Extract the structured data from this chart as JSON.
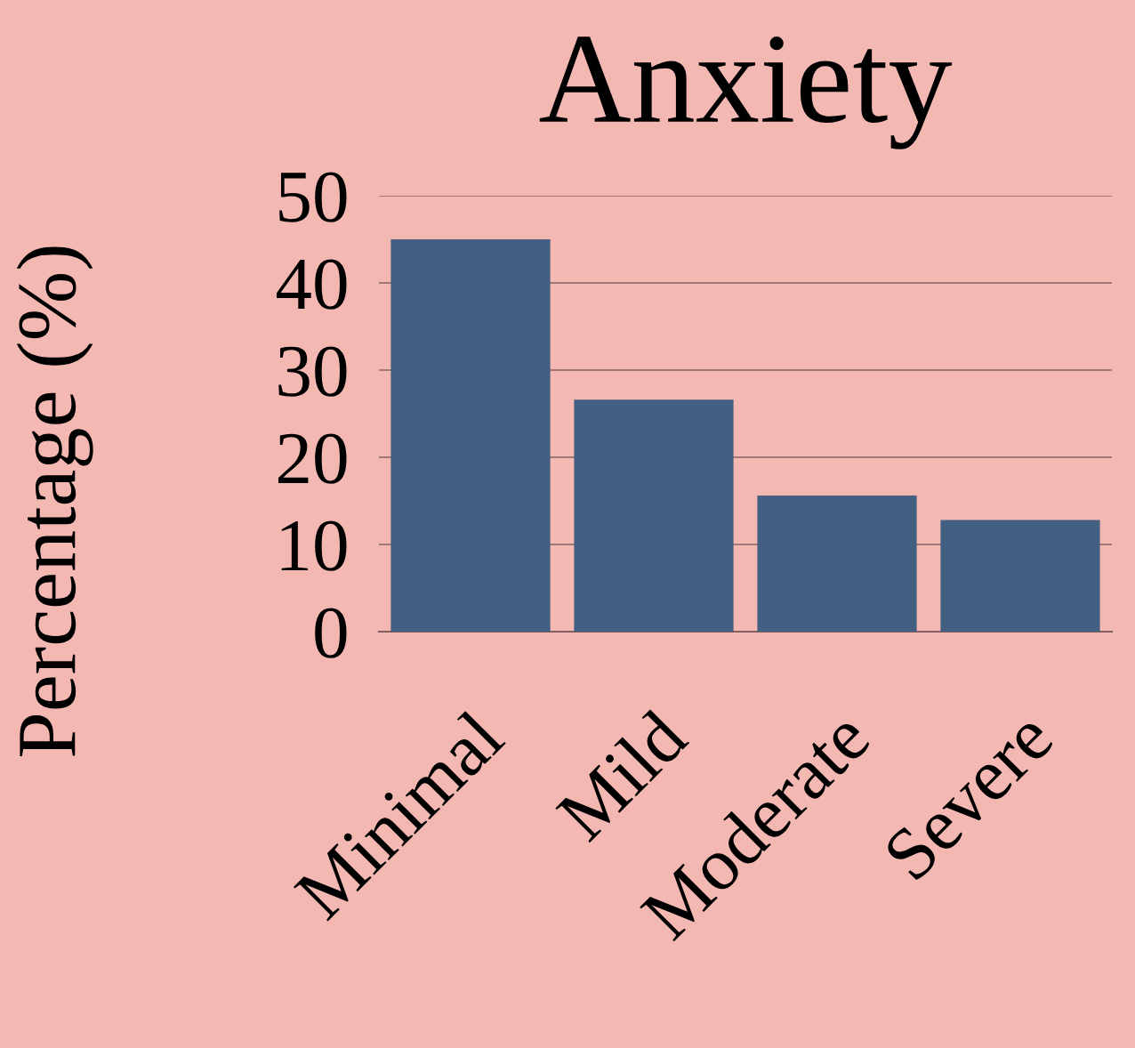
{
  "chart_data": {
    "type": "bar",
    "title": "Anxiety",
    "ylabel": "Percentage (%)",
    "categories": [
      "Minimal",
      "Mild",
      "Moderate",
      "Severe"
    ],
    "values": [
      45,
      26.6,
      15.6,
      12.8
    ],
    "color": "#436083",
    "ylim": [
      0,
      50
    ],
    "yticks": [
      0,
      10,
      20,
      30,
      40,
      50
    ],
    "grid": "y",
    "legend": false
  }
}
